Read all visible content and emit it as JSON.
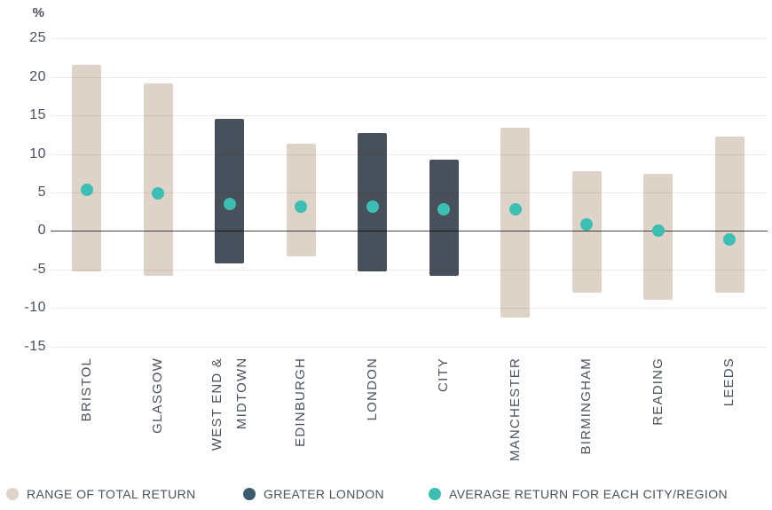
{
  "chart_data": {
    "type": "bar",
    "subtype": "floating-range-bar-with-average-dots",
    "title": "",
    "unit_label": "%",
    "xlabel": "",
    "ylabel": "%",
    "ylim": [
      -15,
      25
    ],
    "y_ticks": [
      25,
      20,
      15,
      10,
      5,
      0,
      -5,
      -10,
      -15
    ],
    "grid": true,
    "legend_position": "bottom",
    "series_colors": {
      "range": "#ddd3c9",
      "greater_london": "#48505b",
      "average": "#3cbfb2"
    },
    "points": [
      {
        "label": "BRISTOL",
        "series": "range",
        "low": -5.3,
        "high": 21.6,
        "average": 5.3
      },
      {
        "label": "GLASGOW",
        "series": "range",
        "low": -5.8,
        "high": 19.2,
        "average": 4.9
      },
      {
        "label": "WEST END &\nMIDTOWN",
        "series": "greater_london",
        "low": -4.2,
        "high": 14.6,
        "average": 3.5
      },
      {
        "label": "EDINBURGH",
        "series": "range",
        "low": -3.3,
        "high": 11.3,
        "average": 3.2
      },
      {
        "label": "LONDON",
        "series": "greater_london",
        "low": -5.3,
        "high": 12.7,
        "average": 3.1
      },
      {
        "label": "CITY",
        "series": "greater_london",
        "low": -5.8,
        "high": 9.3,
        "average": 2.8
      },
      {
        "label": "MANCHESTER",
        "series": "range",
        "low": -11.2,
        "high": 13.4,
        "average": 2.8
      },
      {
        "label": "BIRMINGHAM",
        "series": "range",
        "low": -8.0,
        "high": 7.8,
        "average": 0.8
      },
      {
        "label": "READING",
        "series": "range",
        "low": -8.9,
        "high": 7.4,
        "average": 0.0
      },
      {
        "label": "LEEDS",
        "series": "range",
        "low": -8.0,
        "high": 12.3,
        "average": -1.1
      }
    ],
    "legend": [
      {
        "label": "RANGE OF TOTAL RETURN",
        "color": "#ddd3c9",
        "shape": "circle"
      },
      {
        "label": "GREATER LONDON",
        "color": "#3d5a6f",
        "shape": "circle"
      },
      {
        "label": "AVERAGE RETURN FOR EACH CITY/REGION",
        "color": "#3cbfb2",
        "shape": "circle"
      }
    ]
  },
  "colors": {
    "background": "#ffffff",
    "gridline": "#f3eae5",
    "zero_line": "#40474f",
    "text": "#4a525c"
  }
}
